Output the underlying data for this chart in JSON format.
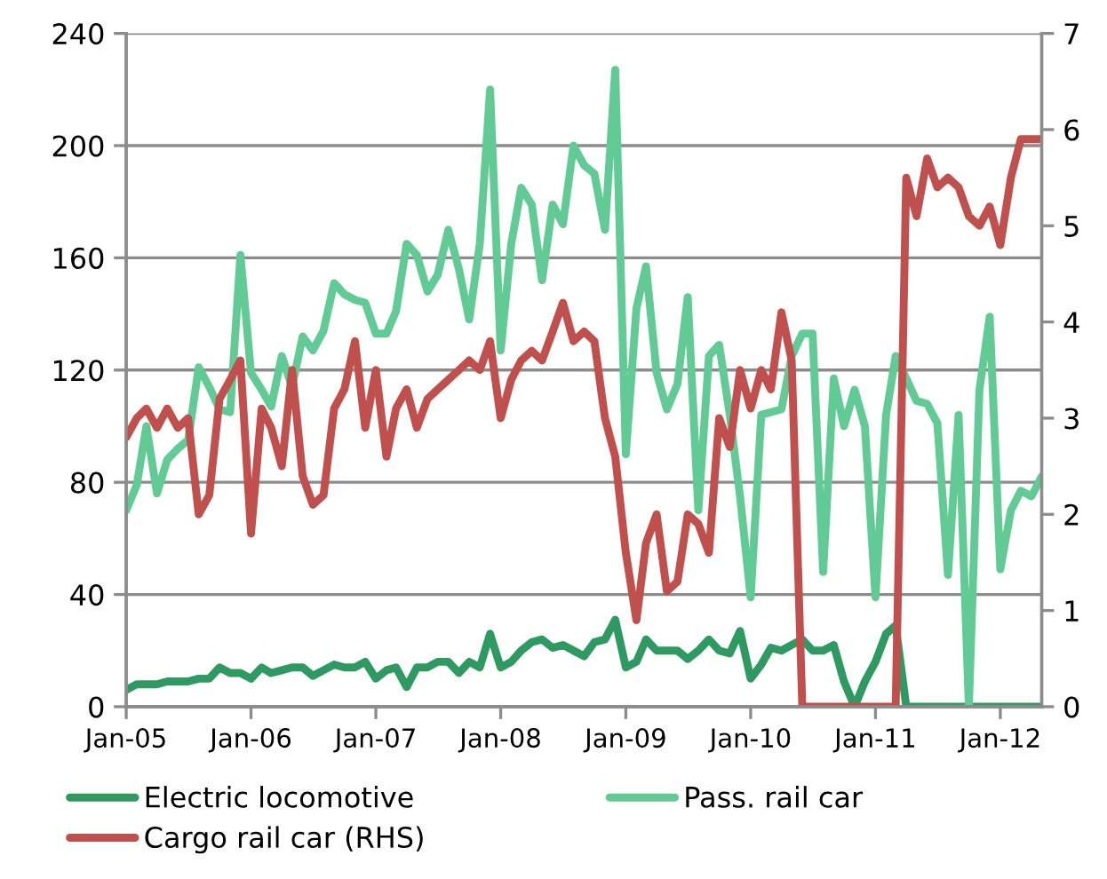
{
  "chart_data": {
    "type": "line",
    "x": [
      "2005-01",
      "2005-02",
      "2005-03",
      "2005-04",
      "2005-05",
      "2005-06",
      "2005-07",
      "2005-08",
      "2005-09",
      "2005-10",
      "2005-11",
      "2005-12",
      "2006-01",
      "2006-02",
      "2006-03",
      "2006-04",
      "2006-05",
      "2006-06",
      "2006-07",
      "2006-08",
      "2006-09",
      "2006-10",
      "2006-11",
      "2006-12",
      "2007-01",
      "2007-02",
      "2007-03",
      "2007-04",
      "2007-05",
      "2007-06",
      "2007-07",
      "2007-08",
      "2007-09",
      "2007-10",
      "2007-11",
      "2007-12",
      "2008-01",
      "2008-02",
      "2008-03",
      "2008-04",
      "2008-05",
      "2008-06",
      "2008-07",
      "2008-08",
      "2008-09",
      "2008-10",
      "2008-11",
      "2008-12",
      "2009-01",
      "2009-02",
      "2009-03",
      "2009-04",
      "2009-05",
      "2009-06",
      "2009-07",
      "2009-08",
      "2009-09",
      "2009-10",
      "2009-11",
      "2009-12",
      "2010-01",
      "2010-02",
      "2010-03",
      "2010-04",
      "2010-05",
      "2010-06",
      "2010-07",
      "2010-08",
      "2010-09",
      "2010-10",
      "2010-11",
      "2010-12",
      "2011-01",
      "2011-02",
      "2011-03",
      "2011-04",
      "2011-05",
      "2011-06",
      "2011-07",
      "2011-08",
      "2011-09",
      "2011-10",
      "2011-11",
      "2011-12",
      "2012-01",
      "2012-02",
      "2012-03",
      "2012-04",
      "2012-05"
    ],
    "series": [
      {
        "name": "Electric locomotive",
        "color": "#2e9a62",
        "values": [
          6,
          8,
          8,
          8,
          9,
          9,
          9,
          10,
          10,
          14,
          12,
          12,
          10,
          14,
          12,
          13,
          14,
          14,
          11,
          13,
          15,
          14,
          14,
          16,
          10,
          13,
          14,
          7,
          14,
          14,
          16,
          16,
          12,
          16,
          14,
          26,
          14,
          16,
          20,
          23,
          24,
          21,
          22,
          20,
          18,
          23,
          24,
          31,
          14,
          16,
          24,
          20,
          20,
          20,
          17,
          20,
          24,
          20,
          19,
          27,
          10,
          15,
          21,
          20,
          22,
          24,
          20,
          20,
          22,
          9,
          0,
          9,
          16,
          26,
          29,
          0,
          0,
          0,
          0,
          0,
          0,
          0,
          0,
          0,
          0,
          0,
          0,
          0,
          0
        ]
      },
      {
        "name": "Pass. rail car",
        "color": "#62cb95",
        "values": [
          70,
          79,
          100,
          76,
          88,
          92,
          95,
          121,
          114,
          106,
          105,
          161,
          119,
          113,
          107,
          125,
          114,
          132,
          127,
          134,
          151,
          147,
          145,
          144,
          133,
          133,
          141,
          165,
          161,
          148,
          154,
          170,
          156,
          138,
          165,
          220,
          127,
          165,
          185,
          179,
          152,
          179,
          172,
          200,
          193,
          190,
          170,
          227,
          90,
          142,
          157,
          119,
          106,
          115,
          146,
          70,
          125,
          129,
          104,
          75,
          39,
          104,
          105,
          106,
          125,
          133,
          133,
          48,
          117,
          100,
          113,
          100,
          39,
          104,
          125,
          117,
          109,
          108,
          101,
          47,
          104,
          0,
          113,
          139,
          49,
          70,
          77,
          75,
          82
        ]
      },
      {
        "name": "Cargo rail car (RHS)",
        "color": "#c0504d",
        "axis": "y2",
        "values": [
          2.8,
          3.0,
          3.1,
          2.9,
          3.1,
          2.9,
          3.0,
          2.0,
          2.2,
          3.2,
          3.4,
          3.6,
          1.8,
          3.1,
          2.9,
          2.5,
          3.5,
          2.4,
          2.1,
          2.2,
          3.1,
          3.3,
          3.8,
          2.9,
          3.5,
          2.6,
          3.1,
          3.3,
          2.9,
          3.2,
          3.3,
          3.4,
          3.5,
          3.6,
          3.5,
          3.8,
          3.0,
          3.4,
          3.6,
          3.7,
          3.6,
          3.9,
          4.2,
          3.8,
          3.9,
          3.8,
          3.0,
          2.6,
          1.6,
          0.9,
          1.7,
          2.0,
          1.2,
          1.3,
          2.0,
          1.9,
          1.6,
          3.0,
          2.7,
          3.5,
          3.1,
          3.5,
          3.3,
          4.1,
          3.6,
          0,
          0,
          0,
          0,
          0,
          0,
          0,
          0,
          0,
          0,
          5.5,
          5.1,
          5.7,
          5.4,
          5.5,
          5.4,
          5.1,
          5.0,
          5.2,
          4.8,
          5.5,
          5.9,
          5.9,
          5.9
        ]
      }
    ],
    "xlim": [
      "2005-01",
      "2012-05"
    ],
    "xticks": [
      {
        "value": "2005-01",
        "label": "Jan-05"
      },
      {
        "value": "2006-01",
        "label": "Jan-06"
      },
      {
        "value": "2007-01",
        "label": "Jan-07"
      },
      {
        "value": "2008-01",
        "label": "Jan-08"
      },
      {
        "value": "2009-01",
        "label": "Jan-09"
      },
      {
        "value": "2010-01",
        "label": "Jan-10"
      },
      {
        "value": "2011-01",
        "label": "Jan-11"
      },
      {
        "value": "2012-01",
        "label": "Jan-12"
      }
    ],
    "ylim": [
      0,
      240
    ],
    "yticks": [
      0,
      40,
      80,
      120,
      160,
      200,
      240
    ],
    "y2lim": [
      0,
      7
    ],
    "y2ticks": [
      0,
      1,
      2,
      3,
      4,
      5,
      6,
      7
    ],
    "grid": "y",
    "legend": "bottom",
    "marker": "none",
    "line_style": "solid"
  }
}
